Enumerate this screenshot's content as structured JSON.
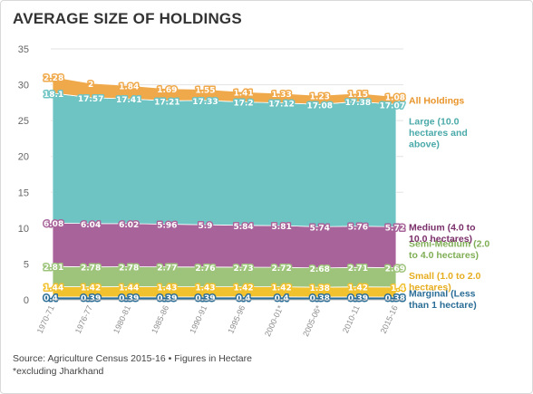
{
  "page": {
    "title": "AVERAGE SIZE OF HOLDINGS",
    "source_line1": "Source: Agriculture Census 2015-16 • Figures in Hectare",
    "source_line2": "*excluding Jharkhand"
  },
  "chart_data": {
    "type": "area",
    "stacked": true,
    "title": "AVERAGE SIZE OF HOLDINGS",
    "xlabel": "",
    "ylabel": "",
    "ylim": [
      0,
      35
    ],
    "yticks": [
      0,
      5,
      10,
      15,
      20,
      25,
      30,
      35
    ],
    "grid": true,
    "categories": [
      "1970-71",
      "1976-77",
      "1980-81",
      "1985-86",
      "1990-91",
      "1995-96",
      "2000-01*",
      "2005-06*",
      "2010-11",
      "2015-16"
    ],
    "series": [
      {
        "name": "Marginal (Less than 1 hectare)",
        "color": "#2a6d96",
        "label_lines": [
          "Marginal (Less",
          "than 1 hectare)"
        ],
        "label_color": "#2a6d96",
        "values": [
          0.4,
          0.39,
          0.39,
          0.39,
          0.39,
          0.4,
          0.4,
          0.38,
          0.39,
          0.38
        ],
        "display": [
          "0.4",
          "0.39",
          "0.39",
          "0.39",
          "0.39",
          "0.4",
          "0.4",
          "0.38",
          "0.39",
          "0.38"
        ]
      },
      {
        "name": "Small (1.0 to 2.0 hectares)",
        "color": "#f2c12e",
        "label_lines": [
          "Small (1.0 to 2.0",
          "hectares)"
        ],
        "label_color": "#e6ad1f",
        "values": [
          1.44,
          1.42,
          1.44,
          1.43,
          1.43,
          1.42,
          1.42,
          1.38,
          1.42,
          1.4
        ],
        "display": [
          "1.44",
          "1.42",
          "1.44",
          "1.43",
          "1.43",
          "1.42",
          "1.42",
          "1.38",
          "1.42",
          "1.4"
        ]
      },
      {
        "name": "Semi-Medium (2.0 to 4.0 hectares)",
        "color": "#9dc47a",
        "label_lines": [
          "Semi-Medium (2.0",
          "to 4.0 hectares)"
        ],
        "label_color": "#7fae55",
        "values": [
          2.81,
          2.78,
          2.78,
          2.77,
          2.76,
          2.73,
          2.72,
          2.68,
          2.71,
          2.69
        ],
        "display": [
          "2.81",
          "2.78",
          "2.78",
          "2.77",
          "2.76",
          "2.73",
          "2.72",
          "2.68",
          "2.71",
          "2.69"
        ]
      },
      {
        "name": "Medium (4.0 to 10.0 hectares)",
        "color": "#a8649a",
        "label_lines": [
          "Medium (4.0 to",
          "10.0 hectares)"
        ],
        "label_color": "#7a2f6a",
        "values": [
          6.08,
          6.04,
          6.02,
          5.96,
          5.9,
          5.84,
          5.81,
          5.74,
          5.76,
          5.72
        ],
        "display": [
          "6.08",
          "6.04",
          "6.02",
          "5.96",
          "5.9",
          "5.84",
          "5.81",
          "5.74",
          "5.76",
          "5.72"
        ]
      },
      {
        "name": "Large (10.0 hectares and above)",
        "color": "#6ec3c3",
        "label_lines": [
          "Large (10.0",
          "hectares and",
          "above)"
        ],
        "label_color": "#4aa9a9",
        "values": [
          18.1,
          17.57,
          17.41,
          17.21,
          17.33,
          17.2,
          17.12,
          17.08,
          17.38,
          17.07
        ],
        "display": [
          "18.1",
          "17.57",
          "17.41",
          "17.21",
          "17.33",
          "17.2",
          "17.12",
          "17.08",
          "17.38",
          "17.07"
        ]
      },
      {
        "name": "All Holdings",
        "color": "#f0a94a",
        "label_lines": [
          "All Holdings"
        ],
        "label_color": "#e8942a",
        "values": [
          2.28,
          2,
          1.84,
          1.69,
          1.55,
          1.41,
          1.33,
          1.23,
          1.15,
          1.08
        ],
        "display": [
          "2.28",
          "2",
          "1.84",
          "1.69",
          "1.55",
          "1.41",
          "1.33",
          "1.23",
          "1.15",
          "1.08"
        ]
      }
    ]
  }
}
